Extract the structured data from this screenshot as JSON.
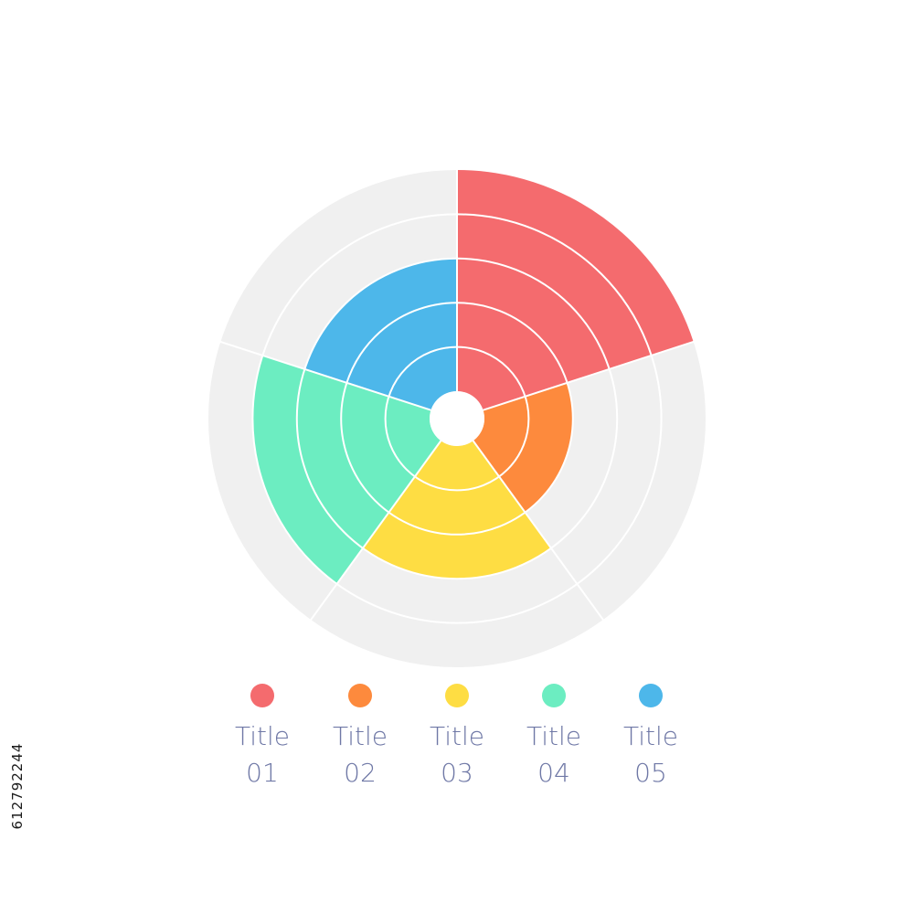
{
  "chart_data": {
    "type": "polar-area",
    "title": "",
    "max_value": 5,
    "rings": 5,
    "categories": [
      "Title 01",
      "Title 02",
      "Title 03",
      "Title 04",
      "Title 05"
    ],
    "values": [
      5,
      2,
      3,
      4,
      3
    ],
    "colors": [
      "#f46b6e",
      "#fd8a3d",
      "#fedd43",
      "#6cedc1",
      "#4db7ea"
    ],
    "background_color": "#f0f0f0",
    "ring_line_color": "#ffffff",
    "legend_position": "bottom"
  },
  "legend": [
    {
      "line1": "Title",
      "line2": "01",
      "color": "#f46b6e"
    },
    {
      "line1": "Title",
      "line2": "02",
      "color": "#fd8a3d"
    },
    {
      "line1": "Title",
      "line2": "03",
      "color": "#fedd43"
    },
    {
      "line1": "Title",
      "line2": "04",
      "color": "#6cedc1"
    },
    {
      "line1": "Title",
      "line2": "05",
      "color": "#4db7ea"
    }
  ],
  "stock_id": "612792244"
}
